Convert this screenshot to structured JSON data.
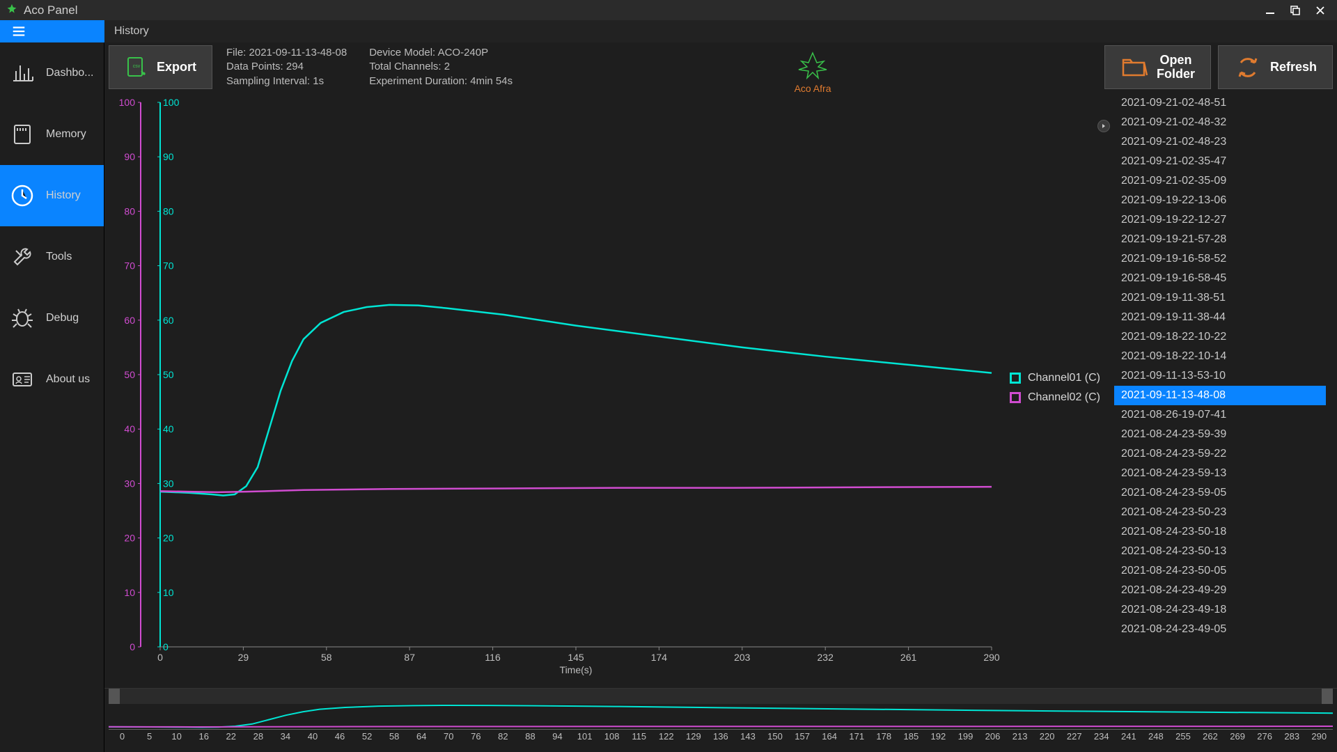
{
  "window": {
    "title": "Aco Panel"
  },
  "breadcrumb": "History",
  "sidebar": {
    "items": [
      {
        "label": "Dashbo...",
        "icon": "bar-chart-icon"
      },
      {
        "label": "Memory",
        "icon": "sd-card-icon"
      },
      {
        "label": "History",
        "icon": "clock-icon",
        "active": true
      },
      {
        "label": "Tools",
        "icon": "wrench-icon"
      },
      {
        "label": "Debug",
        "icon": "bug-icon"
      },
      {
        "label": "About us",
        "icon": "id-card-icon"
      }
    ]
  },
  "toolbar": {
    "export_label": "Export",
    "open_folder_label_1": "Open",
    "open_folder_label_2": "Folder",
    "refresh_label": "Refresh",
    "info1": {
      "file": "File: 2021-09-11-13-48-08",
      "points": "Data Points: 294",
      "interval": "Sampling Interval: 1s"
    },
    "info2": {
      "model": "Device Model: ACO-240P",
      "channels": "Total Channels: 2",
      "duration": "Experiment Duration: 4min 54s"
    },
    "logo_text": "Aco Afra"
  },
  "chart": {
    "type": "line",
    "xlabel": "Time(s)",
    "xlim": [
      0,
      290
    ],
    "xtick_vals": [
      0,
      29,
      58,
      87,
      116,
      145,
      174,
      203,
      232,
      261,
      290
    ],
    "y_left": {
      "color": "#d04cd0",
      "lim": [
        0,
        100
      ],
      "ticks": [
        0,
        10,
        20,
        30,
        40,
        50,
        60,
        70,
        80,
        90,
        100
      ]
    },
    "y_right": {
      "color": "#00e5d4",
      "lim": [
        0,
        100
      ],
      "ticks": [
        0,
        10,
        20,
        30,
        40,
        50,
        60,
        70,
        80,
        90,
        100
      ]
    },
    "background_color": "#1e1e1e",
    "axis_text_color": "#bfbfbf",
    "line_width": 2.5,
    "series": [
      {
        "name": "Channel01 (C)",
        "color": "#00e5d4",
        "points": [
          [
            0,
            28.5
          ],
          [
            10,
            28.3
          ],
          [
            18,
            28.0
          ],
          [
            22,
            27.8
          ],
          [
            26,
            28.0
          ],
          [
            30,
            29.5
          ],
          [
            34,
            33.0
          ],
          [
            38,
            40.0
          ],
          [
            42,
            47.0
          ],
          [
            46,
            52.5
          ],
          [
            50,
            56.5
          ],
          [
            56,
            59.5
          ],
          [
            64,
            61.5
          ],
          [
            72,
            62.4
          ],
          [
            80,
            62.8
          ],
          [
            90,
            62.7
          ],
          [
            100,
            62.2
          ],
          [
            120,
            61.0
          ],
          [
            145,
            59.0
          ],
          [
            174,
            57.0
          ],
          [
            203,
            55.0
          ],
          [
            232,
            53.3
          ],
          [
            261,
            51.8
          ],
          [
            290,
            50.3
          ]
        ]
      },
      {
        "name": "Channel02 (C)",
        "color": "#d04cd0",
        "points": [
          [
            0,
            28.6
          ],
          [
            10,
            28.5
          ],
          [
            20,
            28.4
          ],
          [
            30,
            28.5
          ],
          [
            50,
            28.8
          ],
          [
            80,
            29.0
          ],
          [
            120,
            29.1
          ],
          [
            160,
            29.2
          ],
          [
            200,
            29.2
          ],
          [
            240,
            29.3
          ],
          [
            290,
            29.4
          ]
        ]
      }
    ],
    "legend": [
      "Channel01 (C)",
      "Channel02 (C)"
    ]
  },
  "mini": {
    "ticks": [
      0,
      5,
      10,
      16,
      22,
      28,
      34,
      40,
      46,
      52,
      58,
      64,
      70,
      76,
      82,
      88,
      94,
      101,
      108,
      115,
      122,
      129,
      136,
      143,
      150,
      157,
      164,
      171,
      178,
      185,
      192,
      199,
      206,
      213,
      220,
      227,
      234,
      241,
      248,
      255,
      262,
      269,
      276,
      283,
      290
    ]
  },
  "files": {
    "selected": "2021-09-11-13-48-08",
    "items": [
      "2021-09-21-02-48-51",
      "2021-09-21-02-48-32",
      "2021-09-21-02-48-23",
      "2021-09-21-02-35-47",
      "2021-09-21-02-35-09",
      "2021-09-19-22-13-06",
      "2021-09-19-22-12-27",
      "2021-09-19-21-57-28",
      "2021-09-19-16-58-52",
      "2021-09-19-16-58-45",
      "2021-09-19-11-38-51",
      "2021-09-19-11-38-44",
      "2021-09-18-22-10-22",
      "2021-09-18-22-10-14",
      "2021-09-11-13-53-10",
      "2021-09-11-13-48-08",
      "2021-08-26-19-07-41",
      "2021-08-24-23-59-39",
      "2021-08-24-23-59-22",
      "2021-08-24-23-59-13",
      "2021-08-24-23-59-05",
      "2021-08-24-23-50-23",
      "2021-08-24-23-50-18",
      "2021-08-24-23-50-13",
      "2021-08-24-23-50-05",
      "2021-08-24-23-49-29",
      "2021-08-24-23-49-18",
      "2021-08-24-23-49-05"
    ]
  },
  "colors": {
    "accent": "#0a84ff",
    "btn_orange": "#e07b2f",
    "btn_green": "#39c24a"
  }
}
